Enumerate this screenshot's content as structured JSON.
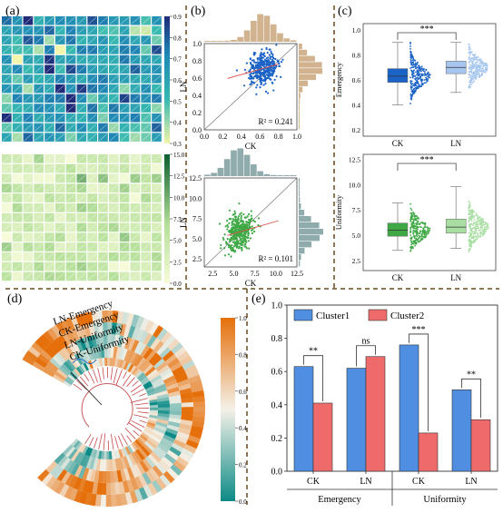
{
  "panels": {
    "a": "(a)",
    "b": "(b)",
    "c": "(c)",
    "d": "(d)",
    "e": "(e)"
  },
  "colors": {
    "blue_dark": "#1f2a78",
    "blue_mid": "#1f87b5",
    "teal": "#35b8b0",
    "yellow": "#f3f5a8",
    "green_dark": "#0b5f2e",
    "green_light": "#e6f4b7",
    "ck_blue": "#1b63c6",
    "ln_blue": "#a7c6ef",
    "ck_green": "#3ea844",
    "ln_green": "#a8dea2",
    "cluster1": "#4f8ee0",
    "cluster2": "#ef6b6b",
    "orange": "#e56f0a",
    "teal_dark": "#0c8a86",
    "dendro": "#c44a4a",
    "dashed_divider": "#6b4a1e"
  },
  "chart_data": [
    {
      "id": "a-top-heatmap",
      "type": "heatmap",
      "colorbar_ticks": [
        "0.9",
        "0.8",
        "0.7",
        "0.6",
        "0.5",
        "0.4",
        "0.3"
      ],
      "vmin": 0.3,
      "vmax": 0.9
    },
    {
      "id": "a-bottom-heatmap",
      "type": "heatmap",
      "colorbar_ticks": [
        "15.0",
        "12.5",
        "10.0",
        "7.5",
        "5.0",
        "2.5",
        "0.0"
      ],
      "vmin": 0.0,
      "vmax": 15.0
    },
    {
      "id": "b-top-scatter",
      "type": "scatter",
      "xlabel": "CK",
      "ylabel": "LN",
      "x_ticks": [
        "0.0",
        "0.2",
        "0.4",
        "0.6",
        "0.8",
        "1.0"
      ],
      "y_ticks": [
        "0.0",
        "0.2",
        "0.4",
        "0.6",
        "0.8",
        "1.0"
      ],
      "xlim": [
        0,
        1
      ],
      "ylim": [
        0,
        1
      ],
      "annotation": "R² = 0.241",
      "center": [
        0.63,
        0.71
      ],
      "spread": [
        0.08,
        0.09
      ],
      "n": 380
    },
    {
      "id": "b-bottom-scatter",
      "type": "scatter",
      "xlabel": "CK",
      "ylabel": "LN",
      "x_ticks": [
        "2.5",
        "5.0",
        "7.5",
        "10.0",
        "12.5"
      ],
      "y_ticks": [
        "2.5",
        "5.0",
        "7.5",
        "10.0",
        "12.5"
      ],
      "xlim": [
        1.5,
        12.5
      ],
      "ylim": [
        1.5,
        12.5
      ],
      "annotation": "R² = 0.101",
      "center": [
        5.6,
        5.8
      ],
      "spread": [
        0.8,
        1.2
      ],
      "n": 380
    },
    {
      "id": "c-top-box",
      "type": "box",
      "ylabel": "Emergency",
      "categories": [
        "CK",
        "LN"
      ],
      "y_ticks": [
        "0.2",
        "0.4",
        "0.6",
        "0.8",
        "1.0"
      ],
      "ylim": [
        0.15,
        1.05
      ],
      "boxes": [
        {
          "name": "CK",
          "q1": 0.58,
          "median": 0.63,
          "q3": 0.69,
          "whislo": 0.4,
          "whishi": 0.9
        },
        {
          "name": "LN",
          "q1": 0.65,
          "median": 0.7,
          "q3": 0.75,
          "whislo": 0.5,
          "whishi": 0.9
        }
      ],
      "significance": "***"
    },
    {
      "id": "c-bottom-box",
      "type": "box",
      "ylabel": "Uniformity",
      "categories": [
        "CK",
        "LN"
      ],
      "y_ticks": [
        "2.5",
        "5.0",
        "7.5",
        "10.0",
        "12.5"
      ],
      "ylim": [
        1.5,
        13
      ],
      "boxes": [
        {
          "name": "CK",
          "q1": 4.9,
          "median": 5.5,
          "q3": 6.2,
          "whislo": 3.5,
          "whishi": 8.2
        },
        {
          "name": "LN",
          "q1": 5.2,
          "median": 5.8,
          "q3": 6.6,
          "whislo": 3.7,
          "whishi": 9.8
        }
      ],
      "significance": "***"
    },
    {
      "id": "d-circular-heatmap",
      "type": "heatmap",
      "ring_labels": [
        "LN-Emergency",
        "CK-Emergency",
        "LN-Uniformity",
        "CK-Uniformity"
      ],
      "colorbar_ticks": [
        "1.0",
        "0.8",
        "0.6",
        "0.4",
        "0.2",
        "0.0"
      ],
      "vmin": 0.0,
      "vmax": 1.0
    },
    {
      "id": "e-grouped-bar",
      "type": "bar",
      "ylim": [
        0,
        1.0
      ],
      "y_ticks": [
        "0.0",
        "0.2",
        "0.4",
        "0.6",
        "0.8",
        "1.0"
      ],
      "legend": [
        "Cluster1",
        "Cluster2"
      ],
      "categories": [
        "CK",
        "LN",
        "CK",
        "LN"
      ],
      "groups": [
        "Emergency",
        "Uniformity"
      ],
      "series": [
        {
          "name": "Cluster1",
          "values": [
            0.63,
            0.62,
            0.76,
            0.49
          ]
        },
        {
          "name": "Cluster2",
          "values": [
            0.41,
            0.69,
            0.23,
            0.31
          ]
        }
      ],
      "significance": [
        "**",
        "ns",
        "***",
        "**"
      ]
    }
  ]
}
